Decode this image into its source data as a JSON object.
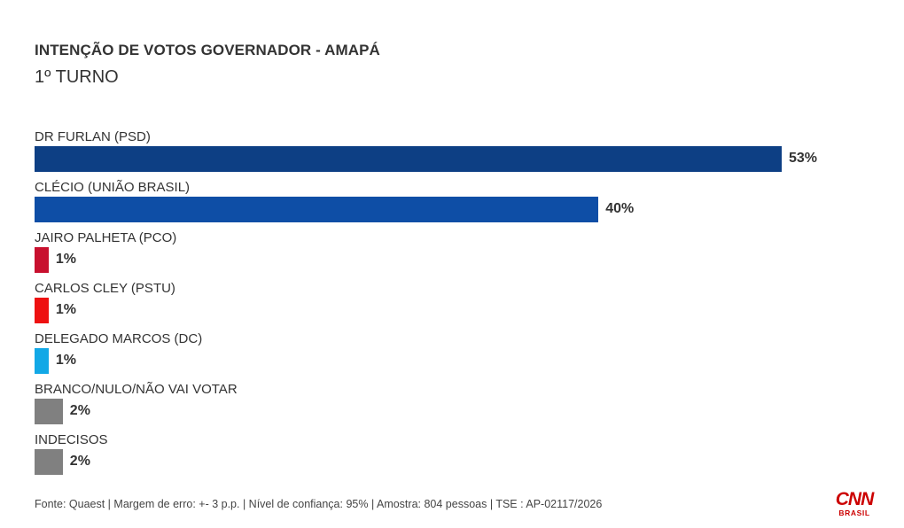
{
  "chart_data": {
    "type": "bar",
    "orientation": "horizontal",
    "title": "INTENÇÃO DE VOTOS GOVERNADOR - AMAPÁ",
    "subtitle": "1º TURNO",
    "unit": "%",
    "categories": [
      "DR FURLAN (PSD)",
      "CLÉCIO (UNIÃO BRASIL)",
      "JAIRO PALHETA (PCO)",
      "CARLOS CLEY (PSTU)",
      "DELEGADO MARCOS (DC)",
      "BRANCO/NULO/NÃO VAI VOTAR",
      "INDECISOS"
    ],
    "values": [
      53,
      40,
      1,
      1,
      1,
      2,
      2
    ],
    "value_labels": [
      "53%",
      "40%",
      "1%",
      "1%",
      "1%",
      "2%",
      "2%"
    ],
    "colors": [
      "#0d3f84",
      "#0e4ea6",
      "#c8102e",
      "#ee1111",
      "#12a8e6",
      "#808080",
      "#808080"
    ],
    "xlim": [
      0,
      53
    ],
    "grid": false,
    "legend": "none"
  },
  "footer": {
    "source": "Fonte: Quaest | Margem de erro: +- 3 p.p. | Nível de confiança: 95% | Amostra: 804 pessoas | TSE : AP-02117/2026"
  },
  "logo": {
    "brand": "CNN",
    "sub": "BRASIL",
    "color": "#cc0000"
  }
}
